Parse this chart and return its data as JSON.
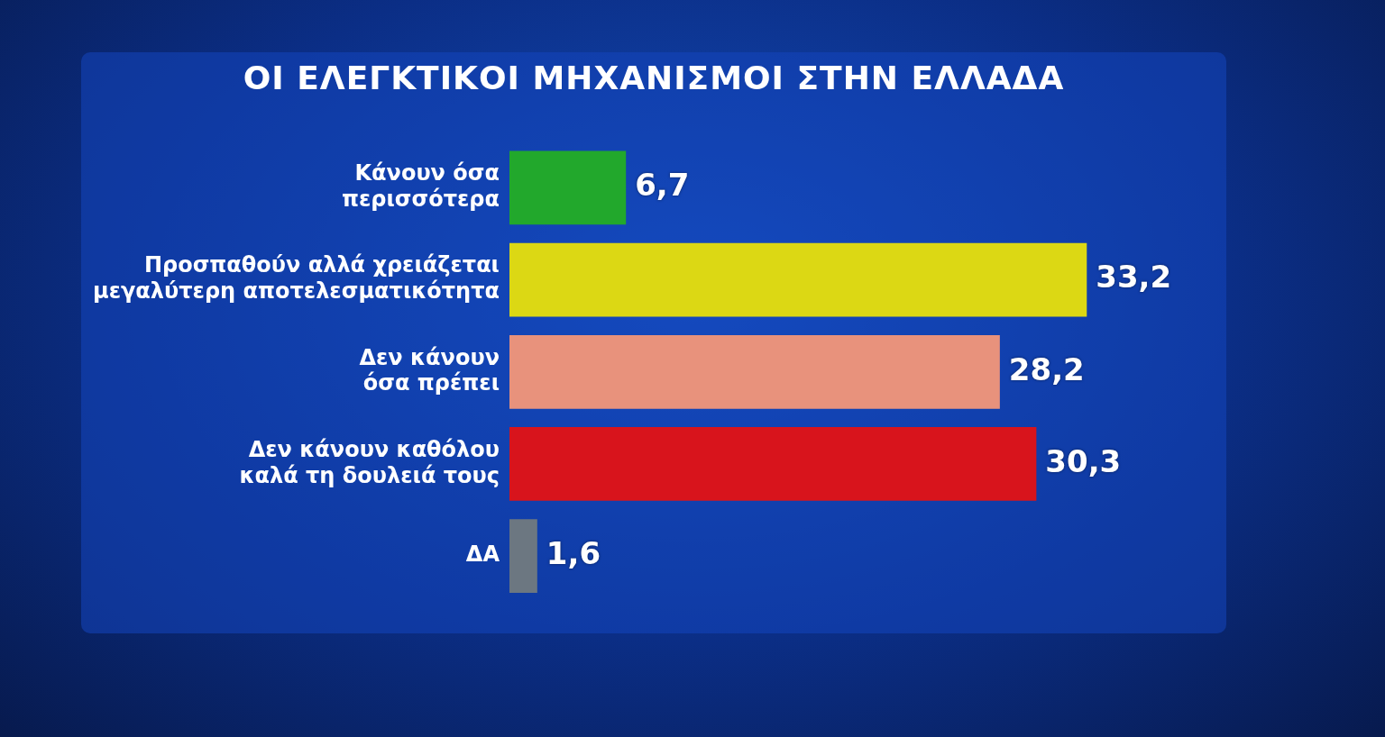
{
  "chart_data": {
    "type": "bar",
    "orientation": "horizontal",
    "title": "ΟΙ ΕΛΕΓΚΤΙΚΟΙ ΜΗΧΑΝΙΣΜΟΙ ΣΤΗΝ ΕΛΛΑΔΑ",
    "categories": [
      "Κάνουν όσα περισσότερα",
      "Προσπαθούν αλλά χρειάζεται μεγαλύτερη αποτελεσματικότητα",
      "Δεν κάνουν όσα πρέπει",
      "Δεν κάνουν καθόλου καλά τη δουλειά τους",
      "ΔΑ"
    ],
    "values": [
      6.7,
      33.2,
      28.2,
      30.3,
      1.6
    ],
    "colors": [
      "#22a82c",
      "#dcd814",
      "#e8927c",
      "#d8141c",
      "#6c7781"
    ],
    "value_labels": [
      "6,7",
      "33,2",
      "28,2",
      "30,3",
      "1,6"
    ],
    "tick_labels": "y"
  }
}
